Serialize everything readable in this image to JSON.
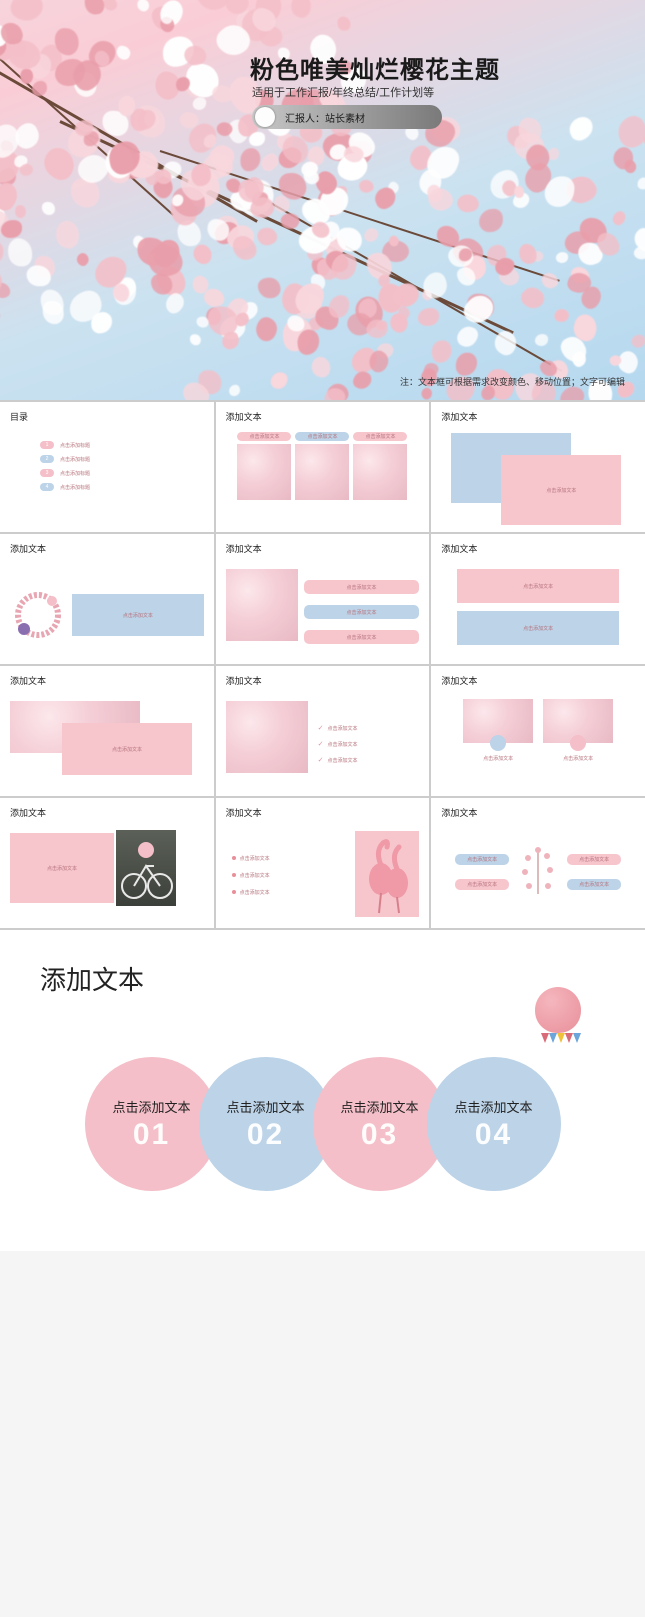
{
  "colors": {
    "pink": "#f4bfc8",
    "pink_light": "#f9d7dd",
    "pink_dark": "#e99fab",
    "blue": "#bcd3e8",
    "blue_light": "#d6e5f1",
    "sky": "#b5d8ef",
    "branch": "#6b4a3a",
    "text_dark": "#1a1a1a",
    "text_mid": "#333333",
    "accent_text": "#b6727b",
    "white": "#ffffff",
    "gray_pill_left": "#c8c8c8",
    "gray_pill_right": "#7a7a7a"
  },
  "cover": {
    "title": "粉色唯美灿烂樱花主题",
    "subtitle": "适用于工作汇报/年终总结/工作计划等",
    "presenter_label": "汇报人：站长素材",
    "footnote": "注：文本框可根据需求改变颜色、移动位置；文字可编辑"
  },
  "thumbs": {
    "toc_title": "目录",
    "generic_title": "添加文本",
    "click_placeholder": "点击添加文本",
    "title_placeholder": "点击添加标题",
    "toc_items": [
      "点击添加标题",
      "点击添加标题",
      "点击添加标题",
      "点击添加标题"
    ],
    "toc_badge_colors": [
      "#f4bfc8",
      "#bcd3e8",
      "#f4bfc8",
      "#bcd3e8"
    ]
  },
  "detail": {
    "title": "添加文本",
    "circles": [
      {
        "label": "点击添加文本",
        "num": "01",
        "fill": "#f4bfc8"
      },
      {
        "label": "点击添加文本",
        "num": "02",
        "fill": "#bcd3e8"
      },
      {
        "label": "点击添加文本",
        "num": "03",
        "fill": "#f4bfc8"
      },
      {
        "label": "点击添加文本",
        "num": "04",
        "fill": "#bcd3e8"
      }
    ],
    "bunting_colors": [
      "#d96b78",
      "#6ba5d9",
      "#f0c23c",
      "#d96b78",
      "#6ba5d9"
    ]
  }
}
